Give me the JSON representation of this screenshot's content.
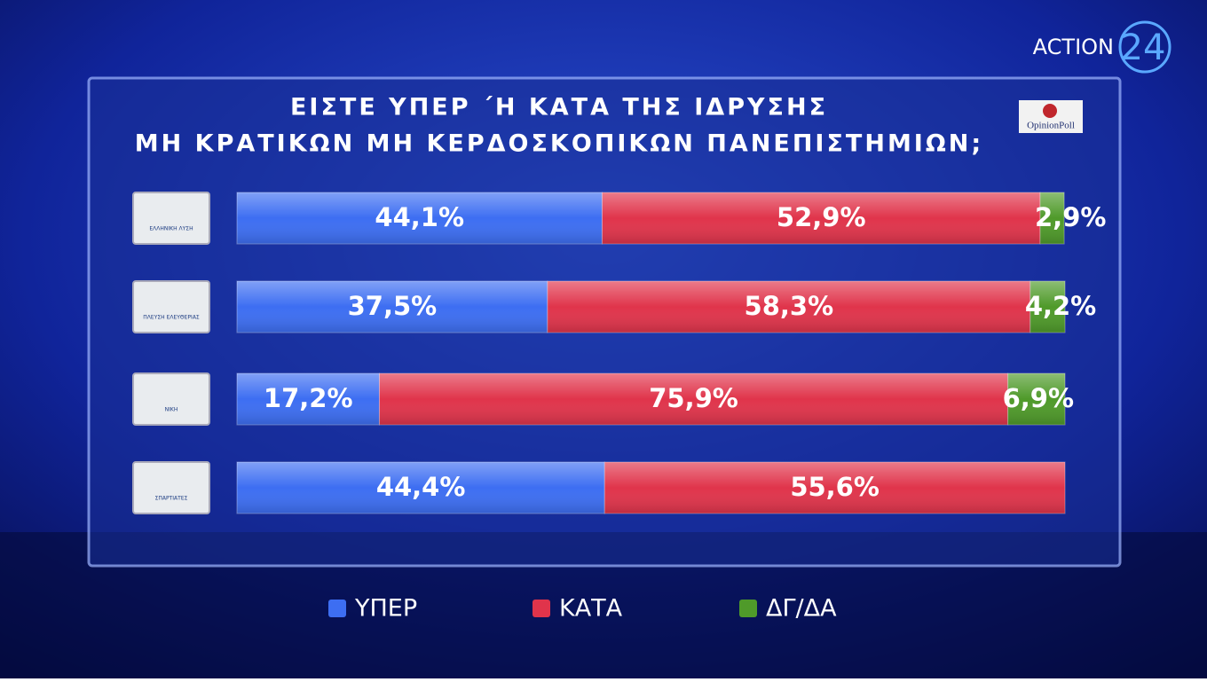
{
  "chart_data": {
    "type": "stacked-bar-horizontal",
    "title": [
      "ΕΙΣΤΕ ΥΠΕΡ ΄Η ΚΑΤΑ ΤΗΣ ΙΔΡΥΣΗΣ",
      "ΜΗ ΚΡΑΤΙΚΩΝ ΜΗ ΚΕΡΔΟΣΚΟΠΙΚΩΝ ΠΑΝΕΠΙΣΤΗΜΙΩΝ;"
    ],
    "categories": [
      "ΕΛΛΗΝΙΚΗ ΛΥΣΗ",
      "ΠΛΕΥΣΗ ΕΛΕΥΘΕΡΙΑΣ",
      "ΝΙΚΗ",
      "ΣΠΑΡΤΙΑΤΕΣ"
    ],
    "series": [
      {
        "name": "ΥΠΕΡ",
        "color": "#3d6ef2",
        "values": [
          44.1,
          37.5,
          17.2,
          44.4
        ],
        "value_labels": [
          "44,1%",
          "37,5%",
          "17,2%",
          "44,4%"
        ]
      },
      {
        "name": "ΚΑΤΑ",
        "color": "#e0344b",
        "values": [
          52.9,
          58.3,
          75.9,
          55.6
        ],
        "value_labels": [
          "52,9%",
          "58,3%",
          "75,9%",
          "55,6%"
        ]
      },
      {
        "name": "ΔΓ/ΔΑ",
        "color": "#4f9a2a",
        "values": [
          2.9,
          4.2,
          6.9,
          null
        ],
        "value_labels": [
          "2,9%",
          "4,2%",
          "6,9%",
          null
        ]
      }
    ],
    "xlim": [
      0,
      100
    ]
  },
  "branding": {
    "channel": "ACTION",
    "channel_number": "24",
    "pollster": "OpinionPoll"
  }
}
